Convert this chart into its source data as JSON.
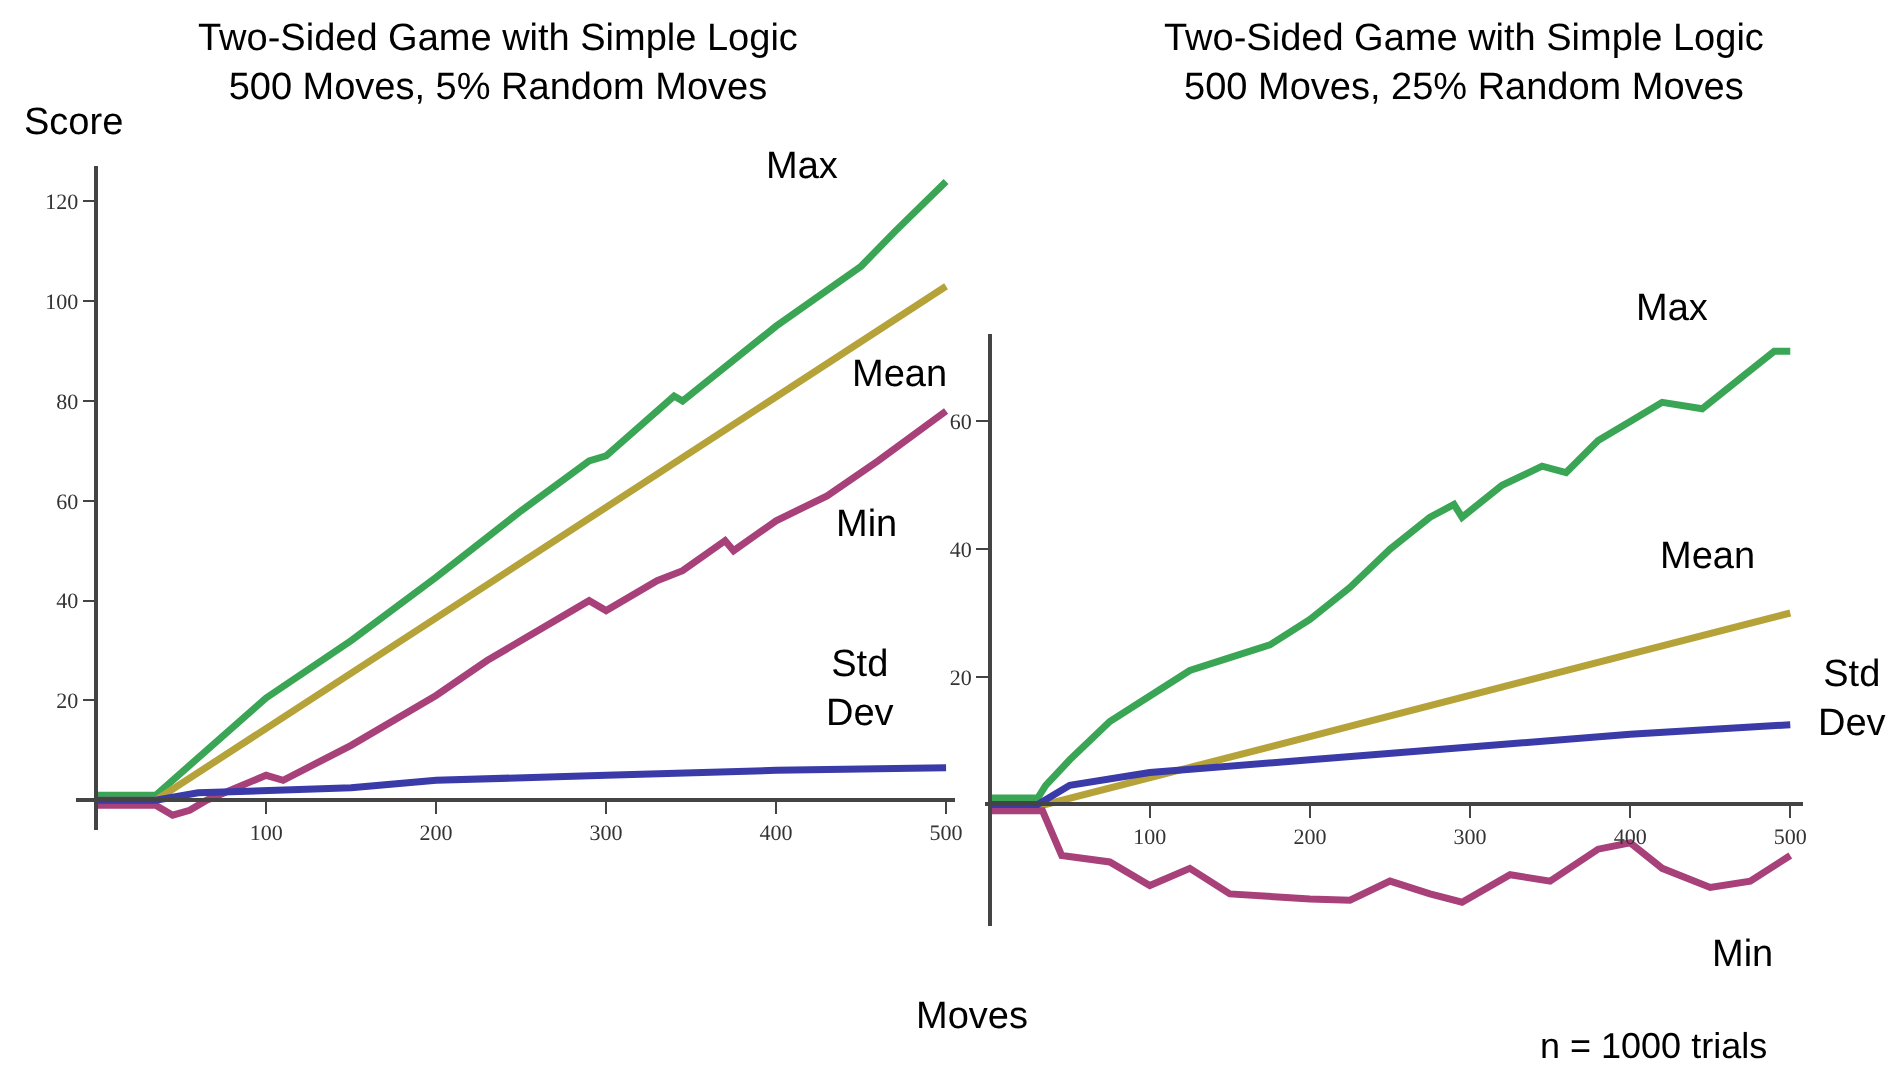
{
  "chart_data": [
    {
      "type": "line",
      "title": "Two-Sided Game with Simple Logic",
      "subtitle": "500 Moves, 5% Random Moves",
      "ylabel": "Score",
      "xlabel": "Moves",
      "xlim": [
        -12,
        505
      ],
      "ylim": [
        -6,
        127
      ],
      "xticks": [
        100,
        200,
        300,
        400,
        500
      ],
      "yticks": [
        20,
        40,
        60,
        80,
        100,
        120
      ],
      "grid": false,
      "legend": false,
      "line_style": "solid",
      "marker": "none",
      "series": [
        {
          "name": "Max",
          "color": "#3aa655",
          "x": [
            0,
            35,
            100,
            150,
            200,
            250,
            290,
            300,
            340,
            345,
            400,
            450,
            470,
            500
          ],
          "values": [
            1,
            1,
            20.5,
            32,
            44.7,
            58,
            68,
            69,
            81,
            80,
            95,
            107,
            114,
            124
          ]
        },
        {
          "name": "Mean",
          "color": "#b5a33a",
          "x": [
            0,
            35,
            500
          ],
          "values": [
            0,
            0,
            103
          ]
        },
        {
          "name": "Min",
          "color": "#a8407a",
          "x": [
            0,
            35,
            45,
            55,
            65,
            100,
            110,
            150,
            200,
            230,
            250,
            290,
            300,
            330,
            345,
            370,
            375,
            400,
            430,
            460,
            500
          ],
          "values": [
            -1,
            -1,
            -3,
            -2,
            0,
            5,
            4,
            11,
            21,
            28,
            32,
            40,
            38,
            44,
            46,
            52,
            50,
            56,
            61,
            68,
            78
          ]
        },
        {
          "name": "Std Dev",
          "color": "#3a3aa8",
          "x": [
            0,
            35,
            60,
            150,
            200,
            300,
            400,
            500
          ],
          "values": [
            0,
            0,
            1.5,
            2.5,
            4,
            5,
            6,
            6.5
          ]
        }
      ]
    },
    {
      "type": "line",
      "title": "Two-Sided Game with Simple Logic",
      "subtitle": "500 Moves, 25% Random Moves",
      "annotations": [
        "n = 1000 trials"
      ],
      "xlim": [
        -3,
        508
      ],
      "ylim": [
        -19,
        73.7
      ],
      "xticks": [
        100,
        200,
        300,
        400,
        500
      ],
      "yticks": [
        20,
        40,
        60
      ],
      "grid": false,
      "legend": false,
      "line_style": "solid",
      "marker": "none",
      "series": [
        {
          "name": "Max",
          "color": "#3aa655",
          "x": [
            0,
            30,
            35,
            50,
            75,
            100,
            125,
            150,
            175,
            200,
            225,
            250,
            275,
            290,
            295,
            320,
            345,
            360,
            380,
            400,
            420,
            445,
            470,
            490,
            500
          ],
          "values": [
            1,
            1,
            3,
            7,
            13,
            17,
            21,
            23,
            25,
            29,
            34,
            40,
            45,
            47,
            45,
            50,
            53,
            52,
            57,
            60,
            63,
            62,
            67,
            71,
            71
          ]
        },
        {
          "name": "Mean",
          "color": "#b5a33a",
          "x": [
            0,
            35,
            500
          ],
          "values": [
            0,
            0,
            30
          ]
        },
        {
          "name": "Min",
          "color": "#a8407a",
          "x": [
            0,
            33,
            45,
            75,
            100,
            125,
            150,
            200,
            225,
            250,
            275,
            295,
            325,
            350,
            380,
            400,
            420,
            450,
            475,
            500
          ],
          "values": [
            -1,
            -1,
            -8,
            -9,
            -12.7,
            -10,
            -14,
            -14.8,
            -15,
            -12,
            -14,
            -15.3,
            -11,
            -12,
            -7,
            -6,
            -10,
            -13,
            -12,
            -8
          ]
        },
        {
          "name": "Std Dev",
          "color": "#3a3aa8",
          "x": [
            0,
            30,
            50,
            100,
            200,
            300,
            400,
            500
          ],
          "values": [
            0,
            0,
            3,
            5,
            7,
            9,
            11,
            12.5
          ]
        }
      ]
    }
  ]
}
